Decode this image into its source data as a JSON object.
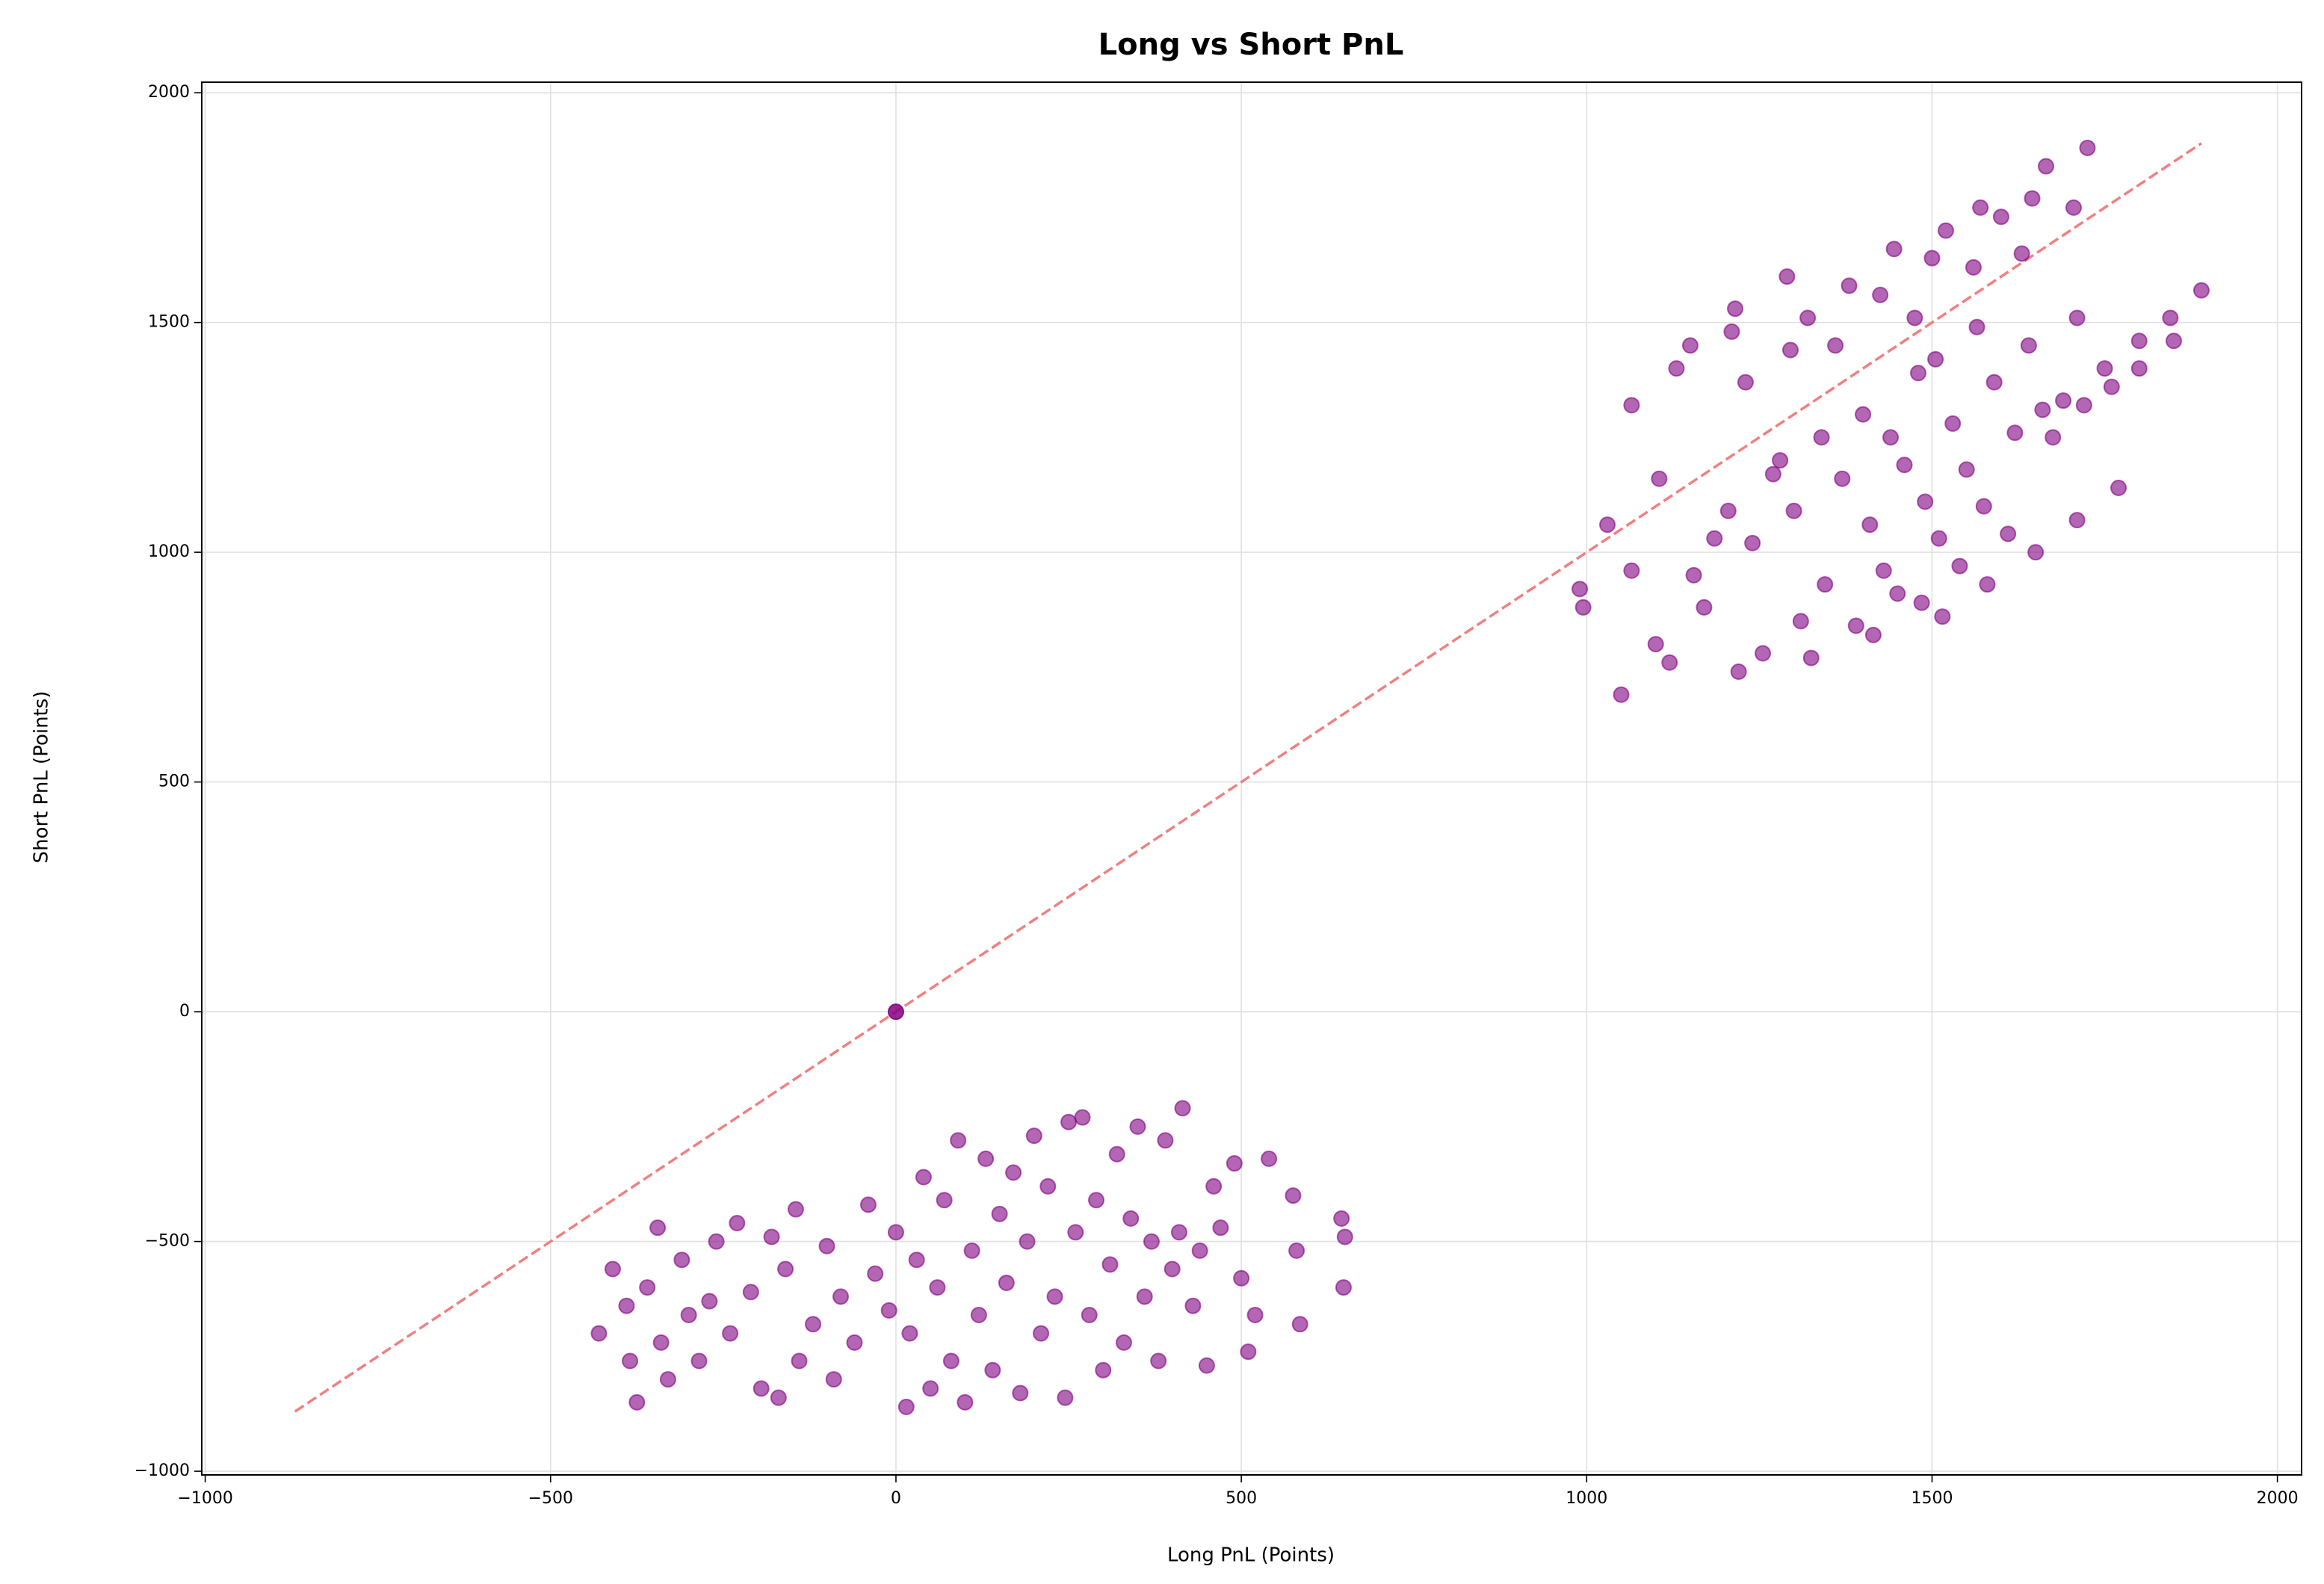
{
  "chart_data": {
    "type": "scatter",
    "title": "Long vs Short PnL",
    "x_label": "Long PnL (Points)",
    "y_label": "Short PnL (Points)",
    "color": "#800080",
    "alpha": 0.6,
    "grid": true,
    "xlim": [
      -1005,
      2035
    ],
    "ylim": [
      -1008,
      2023
    ],
    "xticks": [
      {
        "value": -1000,
        "label": "−1000"
      },
      {
        "value": -500,
        "label": "−500"
      },
      0,
      500,
      1000,
      1500,
      2000
    ],
    "yticks": [
      {
        "value": -1000,
        "label": "−1000"
      },
      {
        "value": -500,
        "label": "−500"
      },
      0,
      500,
      1000,
      1500,
      2000
    ],
    "reference_line": {
      "x": [
        -870,
        1890
      ],
      "values": [
        -870,
        1890
      ],
      "color": "#f08080",
      "style": "dashed"
    },
    "x": [
      0,
      0,
      -430,
      -410,
      -390,
      -385,
      -375,
      -360,
      -345,
      -340,
      -330,
      -310,
      -300,
      -285,
      -270,
      -260,
      -240,
      -230,
      -210,
      -195,
      -180,
      -170,
      -160,
      -145,
      -140,
      -120,
      -100,
      -90,
      -80,
      -60,
      -40,
      -30,
      -10,
      0,
      15,
      20,
      30,
      40,
      50,
      60,
      70,
      80,
      90,
      100,
      110,
      120,
      130,
      140,
      150,
      160,
      170,
      180,
      190,
      200,
      210,
      220,
      230,
      245,
      250,
      260,
      270,
      280,
      290,
      300,
      310,
      320,
      330,
      340,
      350,
      360,
      370,
      380,
      390,
      400,
      410,
      415,
      430,
      440,
      450,
      460,
      470,
      490,
      500,
      510,
      520,
      540,
      575,
      580,
      585,
      645,
      648,
      650,
      990,
      995,
      1030,
      1050,
      1065,
      1065,
      1100,
      1105,
      1120,
      1130,
      1150,
      1155,
      1170,
      1185,
      1205,
      1210,
      1215,
      1220,
      1230,
      1240,
      1255,
      1270,
      1280,
      1290,
      1295,
      1300,
      1310,
      1320,
      1325,
      1340,
      1345,
      1360,
      1370,
      1380,
      1390,
      1400,
      1410,
      1415,
      1425,
      1430,
      1440,
      1445,
      1450,
      1460,
      1475,
      1480,
      1485,
      1490,
      1500,
      1505,
      1510,
      1515,
      1520,
      1530,
      1540,
      1550,
      1560,
      1565,
      1570,
      1575,
      1580,
      1590,
      1600,
      1610,
      1620,
      1630,
      1640,
      1645,
      1650,
      1660,
      1665,
      1675,
      1690,
      1705,
      1710,
      1710,
      1720,
      1725,
      1750,
      1760,
      1770,
      1800,
      1800,
      1845,
      1850,
      1890
    ],
    "values": [
      0,
      0,
      -700,
      -560,
      -640,
      -760,
      -850,
      -600,
      -470,
      -720,
      -800,
      -540,
      -660,
      -760,
      -630,
      -500,
      -700,
      -460,
      -610,
      -820,
      -490,
      -840,
      -560,
      -430,
      -760,
      -680,
      -510,
      -800,
      -620,
      -720,
      -420,
      -570,
      -650,
      -480,
      -860,
      -700,
      -540,
      -360,
      -820,
      -600,
      -410,
      -760,
      -280,
      -850,
      -520,
      -660,
      -320,
      -780,
      -440,
      -590,
      -350,
      -830,
      -500,
      -270,
      -700,
      -380,
      -620,
      -840,
      -240,
      -480,
      -230,
      -660,
      -410,
      -780,
      -550,
      -310,
      -720,
      -450,
      -250,
      -620,
      -500,
      -760,
      -280,
      -560,
      -480,
      -210,
      -640,
      -520,
      -770,
      -380,
      -470,
      -330,
      -580,
      -740,
      -660,
      -320,
      -400,
      -520,
      -680,
      -450,
      -600,
      -490,
      920,
      880,
      1060,
      690,
      1320,
      960,
      800,
      1160,
      760,
      1400,
      1450,
      950,
      880,
      1030,
      1090,
      1480,
      1530,
      740,
      1370,
      1020,
      780,
      1170,
      1200,
      1600,
      1440,
      1090,
      850,
      1510,
      770,
      1250,
      930,
      1450,
      1160,
      1580,
      840,
      1300,
      1060,
      820,
      1560,
      960,
      1250,
      1660,
      910,
      1190,
      1510,
      1390,
      890,
      1110,
      1640,
      1420,
      1030,
      860,
      1700,
      1280,
      970,
      1180,
      1620,
      1490,
      1750,
      1100,
      930,
      1370,
      1730,
      1040,
      1260,
      1650,
      1450,
      1770,
      1000,
      1310,
      1840,
      1250,
      1330,
      1750,
      1510,
      1070,
      1320,
      1880,
      1400,
      1360,
      1140,
      1460,
      1400,
      1510,
      1460,
      1570
    ]
  }
}
